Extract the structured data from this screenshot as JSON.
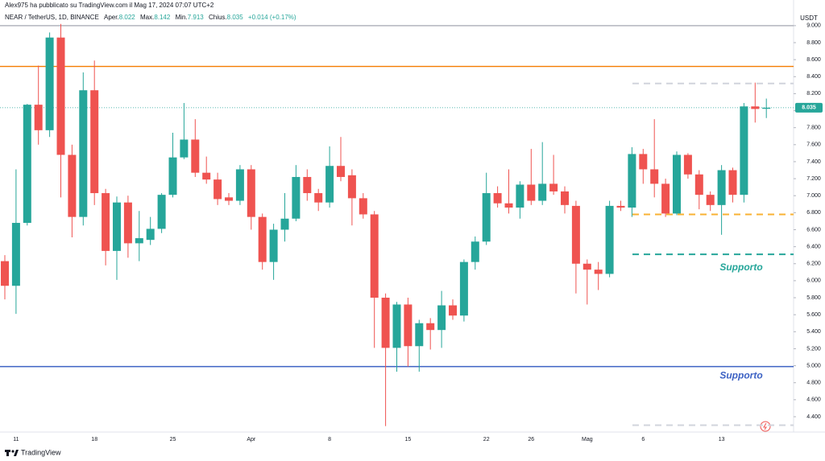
{
  "chart_data": {
    "type": "candlestick",
    "publisher": "Alex975 ha pubblicato su TradingView.com il Mag 17, 2024 07:07 UTC+2",
    "symbol": "NEAR / TetherUS, 1D, BINANCE",
    "header": {
      "open_label": "Aper.",
      "open": 8.022,
      "high_label": "Max.",
      "high": 8.142,
      "low_label": "Min.",
      "low": 7.913,
      "close_label": "Chius.",
      "close": 8.035,
      "change": "+0.014",
      "change_pct": "(+0.17%)"
    },
    "currency": "USDT",
    "brand": "TradingView",
    "up_color": "#26a69a",
    "down_color": "#ef5350",
    "x": [
      null,
      "11",
      null,
      null,
      null,
      null,
      null,
      null,
      "18",
      null,
      null,
      null,
      null,
      null,
      null,
      "25",
      null,
      null,
      null,
      null,
      null,
      null,
      "Apr",
      null,
      null,
      null,
      null,
      null,
      null,
      "8",
      null,
      null,
      null,
      null,
      null,
      null,
      "15",
      null,
      null,
      null,
      null,
      null,
      null,
      "22",
      null,
      null,
      null,
      "26",
      null,
      null,
      null,
      null,
      "Mag",
      null,
      null,
      null,
      null,
      "6",
      null,
      null,
      null,
      null,
      null,
      null,
      "13",
      null,
      null,
      null,
      null
    ],
    "open": [
      6.23,
      5.94,
      6.68,
      8.07,
      7.77,
      8.86,
      7.48,
      6.75,
      8.24,
      7.03,
      6.35,
      6.92,
      6.44,
      6.48,
      6.61,
      7.01,
      7.45,
      7.66,
      7.27,
      7.19,
      6.98,
      6.94,
      7.31,
      6.75,
      6.22,
      6.6,
      6.73,
      7.22,
      7.03,
      6.92,
      7.35,
      7.24,
      6.97,
      6.78,
      5.8,
      5.21,
      5.72,
      5.23,
      5.5,
      5.42,
      5.71,
      5.59,
      6.22,
      6.46,
      7.03,
      6.91,
      6.86,
      7.13,
      6.94,
      7.14,
      7.05,
      6.88,
      6.2,
      6.13,
      6.08,
      6.88,
      6.86,
      7.49,
      7.31,
      7.14,
      6.79,
      7.48,
      7.25,
      7.01,
      6.89,
      7.3,
      7.01,
      8.05,
      8.022
    ],
    "high": [
      6.3,
      7.31,
      8.08,
      8.53,
      8.92,
      9.02,
      7.6,
      8.45,
      8.59,
      7.08,
      6.99,
      7.0,
      6.82,
      6.75,
      7.03,
      7.74,
      8.09,
      7.9,
      7.46,
      7.27,
      7.03,
      7.36,
      7.36,
      6.79,
      6.67,
      7.03,
      7.36,
      7.31,
      7.08,
      7.58,
      7.69,
      7.31,
      7.03,
      6.82,
      5.85,
      5.75,
      5.8,
      5.54,
      5.56,
      5.88,
      5.78,
      6.25,
      6.52,
      7.27,
      7.11,
      7.31,
      7.17,
      7.55,
      7.63,
      7.48,
      7.11,
      6.94,
      6.25,
      6.22,
      6.94,
      6.94,
      7.57,
      7.55,
      7.9,
      7.2,
      7.52,
      7.5,
      7.3,
      7.05,
      7.36,
      7.33,
      8.09,
      8.33,
      8.142
    ],
    "low": [
      5.78,
      5.61,
      6.65,
      7.6,
      7.69,
      6.98,
      6.51,
      6.65,
      6.89,
      6.18,
      6.01,
      6.27,
      6.23,
      6.42,
      6.56,
      6.98,
      7.43,
      7.22,
      7.14,
      6.89,
      6.89,
      6.89,
      6.6,
      6.13,
      6.01,
      6.46,
      6.7,
      6.94,
      6.82,
      6.86,
      7.17,
      6.65,
      6.73,
      5.21,
      4.29,
      4.93,
      4.99,
      4.93,
      5.19,
      5.21,
      5.54,
      5.52,
      6.13,
      6.42,
      6.86,
      6.79,
      6.73,
      6.89,
      6.89,
      7.01,
      6.79,
      5.85,
      5.72,
      5.89,
      6.04,
      6.82,
      6.75,
      7.14,
      6.98,
      6.75,
      6.77,
      7.2,
      6.84,
      6.82,
      6.54,
      6.92,
      6.92,
      7.86,
      7.913
    ],
    "close": [
      5.94,
      6.68,
      8.07,
      7.77,
      8.86,
      7.48,
      6.75,
      8.24,
      7.03,
      6.35,
      6.92,
      6.44,
      6.5,
      6.61,
      7.01,
      7.45,
      7.66,
      7.27,
      7.19,
      6.96,
      6.94,
      7.31,
      6.75,
      6.22,
      6.6,
      6.73,
      7.22,
      7.03,
      6.92,
      7.35,
      7.22,
      6.97,
      6.78,
      5.8,
      5.21,
      5.72,
      5.23,
      5.5,
      5.42,
      5.71,
      5.59,
      6.22,
      6.46,
      7.03,
      6.91,
      6.86,
      7.13,
      6.94,
      7.14,
      7.05,
      6.89,
      6.2,
      6.13,
      6.08,
      6.88,
      6.86,
      7.49,
      7.31,
      7.14,
      6.79,
      7.48,
      7.25,
      7.01,
      6.89,
      7.3,
      7.01,
      8.05,
      8.02,
      8.035
    ],
    "ylim": [
      4.2,
      9.1
    ],
    "yticks": [
      {
        "value": 4.4,
        "label": "4.400"
      },
      {
        "value": 4.6,
        "label": "4.600"
      },
      {
        "value": 4.8,
        "label": "4.800"
      },
      {
        "value": 5.0,
        "label": "5.000"
      },
      {
        "value": 5.2,
        "label": "5.200"
      },
      {
        "value": 5.4,
        "label": "5.400"
      },
      {
        "value": 5.6,
        "label": "5.600"
      },
      {
        "value": 5.8,
        "label": "5.800"
      },
      {
        "value": 6.0,
        "label": "6.000"
      },
      {
        "value": 6.2,
        "label": "6.200"
      },
      {
        "value": 6.4,
        "label": "6.400"
      },
      {
        "value": 6.6,
        "label": "6.600"
      },
      {
        "value": 6.8,
        "label": "6.800"
      },
      {
        "value": 7.0,
        "label": "7.000"
      },
      {
        "value": 7.2,
        "label": "7.200"
      },
      {
        "value": 7.4,
        "label": "7.400"
      },
      {
        "value": 7.6,
        "label": "7.600"
      },
      {
        "value": 7.8,
        "label": "7.800"
      },
      {
        "value": 8.0,
        "label": "8.000"
      },
      {
        "value": 8.2,
        "label": "8.200"
      },
      {
        "value": 8.4,
        "label": "8.400"
      },
      {
        "value": 8.6,
        "label": "8.600"
      },
      {
        "value": 8.8,
        "label": "8.800"
      },
      {
        "value": 9.0,
        "label": "9.000"
      }
    ],
    "last_price": {
      "value": 8.035,
      "label": "8.035",
      "color": "#26a69a"
    },
    "levels": [
      {
        "value": 9.0,
        "color": "#b2b5be",
        "style": "solid"
      },
      {
        "value": 8.52,
        "color": "#f57c00",
        "style": "solid"
      },
      {
        "value": 4.99,
        "color": "#3d62c4",
        "style": "solid"
      },
      {
        "value": 8.32,
        "color": "#d1d4dc",
        "style": "dashed"
      },
      {
        "value": 6.78,
        "color": "#f9b233",
        "style": "dashed"
      },
      {
        "value": 6.31,
        "color": "#26a69a",
        "style": "dashed"
      },
      {
        "value": 4.3,
        "color": "#d1d4dc",
        "style": "dashed"
      }
    ],
    "annotations": [
      {
        "text": "Supporto",
        "color": "#26a69a",
        "y": 6.15
      },
      {
        "text": "Supporto",
        "color": "#3d62c4",
        "y": 4.88
      }
    ]
  }
}
